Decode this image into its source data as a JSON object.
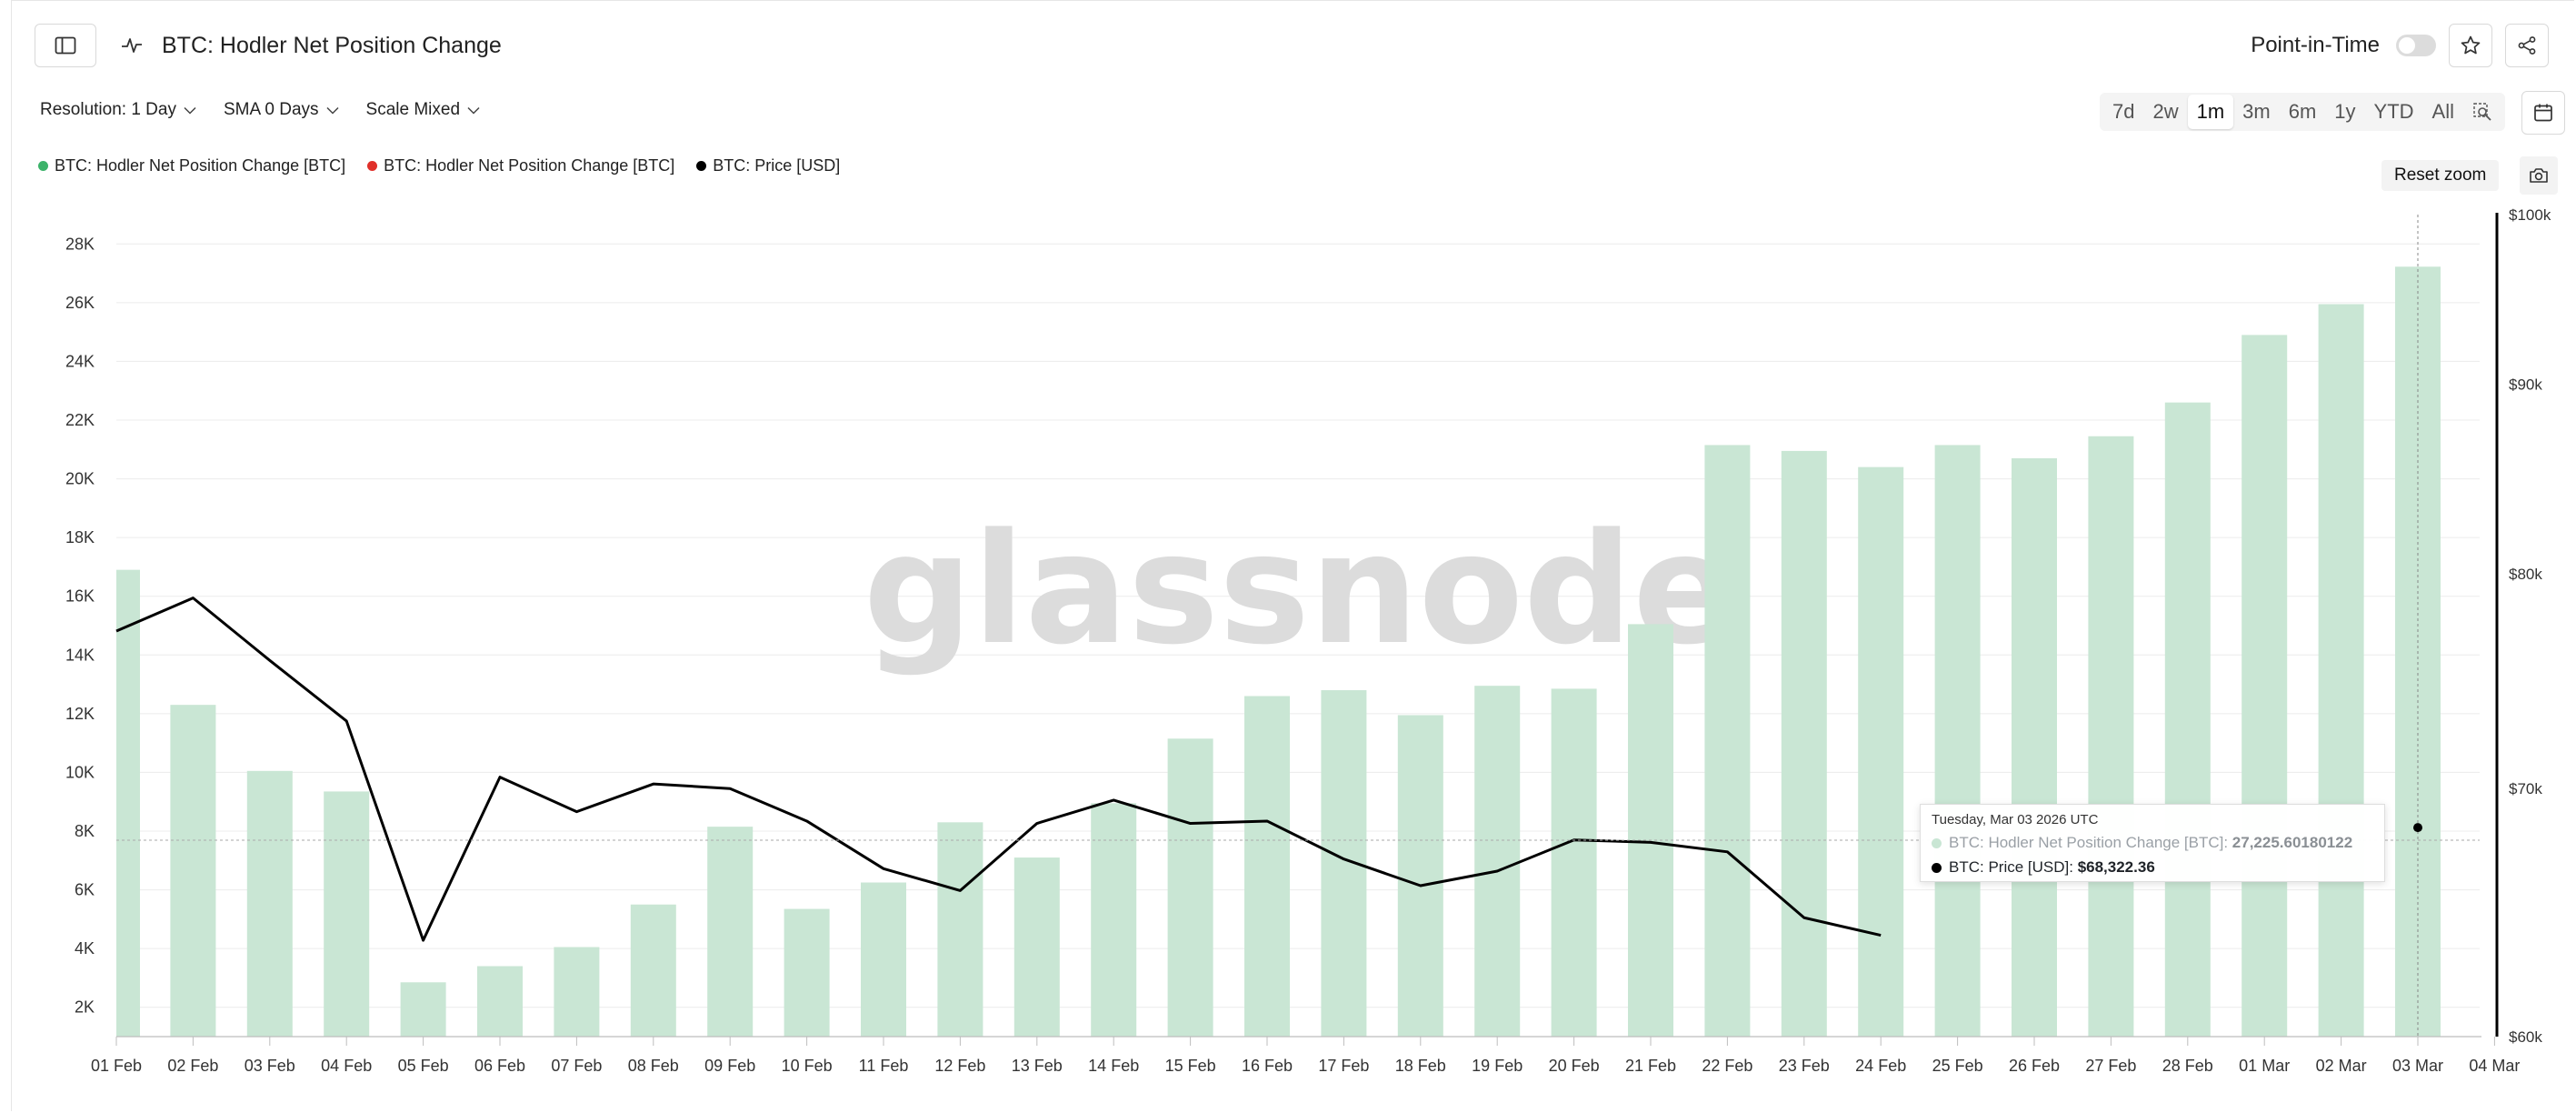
{
  "header": {
    "title": "BTC: Hodler Net Position Change",
    "point_in_time_label": "Point-in-Time"
  },
  "controls": {
    "resolution": "Resolution: 1 Day",
    "sma": "SMA 0 Days",
    "scale": "Scale Mixed"
  },
  "ranges": [
    "7d",
    "2w",
    "1m",
    "3m",
    "6m",
    "1y",
    "YTD",
    "All"
  ],
  "active_range": "1m",
  "reset_zoom_label": "Reset zoom",
  "watermark": "glassnode",
  "legend": [
    {
      "label": "BTC: Hodler Net Position Change [BTC]",
      "color": "#3cb36a"
    },
    {
      "label": "BTC: Hodler Net Position Change [BTC]",
      "color": "#e0302a"
    },
    {
      "label": "BTC: Price [USD]",
      "color": "#000000"
    }
  ],
  "tooltip": {
    "date": "Tuesday, Mar 03 2026 UTC",
    "row1_label": "BTC: Hodler Net Position Change [BTC]: ",
    "row1_value": "27,225.60180122",
    "row2_label": "BTC: Price [USD]: ",
    "row2_value": "$68,322.36"
  },
  "chart_data": {
    "type": "bar",
    "categories": [
      "01 Feb",
      "02 Feb",
      "03 Feb",
      "04 Feb",
      "05 Feb",
      "06 Feb",
      "07 Feb",
      "08 Feb",
      "09 Feb",
      "10 Feb",
      "11 Feb",
      "12 Feb",
      "13 Feb",
      "14 Feb",
      "15 Feb",
      "16 Feb",
      "17 Feb",
      "18 Feb",
      "19 Feb",
      "20 Feb",
      "21 Feb",
      "22 Feb",
      "23 Feb",
      "24 Feb",
      "25 Feb",
      "26 Feb",
      "27 Feb",
      "28 Feb",
      "01 Mar",
      "02 Mar",
      "03 Mar"
    ],
    "x_tick_labels": [
      "01 Feb",
      "02 Feb",
      "03 Feb",
      "04 Feb",
      "05 Feb",
      "06 Feb",
      "07 Feb",
      "08 Feb",
      "09 Feb",
      "10 Feb",
      "11 Feb",
      "12 Feb",
      "13 Feb",
      "14 Feb",
      "15 Feb",
      "16 Feb",
      "17 Feb",
      "18 Feb",
      "19 Feb",
      "20 Feb",
      "21 Feb",
      "22 Feb",
      "23 Feb",
      "24 Feb",
      "25 Feb",
      "26 Feb",
      "27 Feb",
      "28 Feb",
      "01 Mar",
      "02 Mar",
      "03 Mar",
      "04 Mar"
    ],
    "series": [
      {
        "name": "BTC: Hodler Net Position Change [BTC]",
        "axis": "left",
        "color": "#c9e6d4",
        "values": [
          16900,
          12300,
          10050,
          9350,
          2850,
          3400,
          4050,
          5500,
          8150,
          5350,
          6250,
          8300,
          7100,
          8950,
          11150,
          12600,
          12800,
          11950,
          12950,
          12850,
          15050,
          21150,
          20950,
          20400,
          21150,
          20700,
          21450,
          22600,
          24900,
          25950,
          27225.6
        ]
      },
      {
        "name": "BTC: Price [USD]",
        "axis": "right",
        "type": "line",
        "color": "#000000",
        "values": [
          77200,
          78800,
          75800,
          73000,
          63700,
          70500,
          69000,
          70200,
          70000,
          68600,
          66600,
          65700,
          68500,
          69500,
          68500,
          68600,
          67000,
          65900,
          66500,
          67800,
          67700,
          67300,
          64600,
          63900,
          null,
          null,
          null,
          null,
          null,
          null,
          68322.36
        ]
      }
    ],
    "left_axis": {
      "ticks": [
        "2K",
        "4K",
        "6K",
        "8K",
        "10K",
        "12K",
        "14K",
        "16K",
        "18K",
        "20K",
        "22K",
        "24K",
        "26K",
        "28K"
      ],
      "range": [
        1000,
        29000
      ]
    },
    "right_axis": {
      "scale": "log",
      "ticks": [
        "$60k",
        "$70k",
        "$80k",
        "$90k",
        "$100k"
      ],
      "range": [
        60000,
        100000
      ]
    },
    "grid": true
  }
}
